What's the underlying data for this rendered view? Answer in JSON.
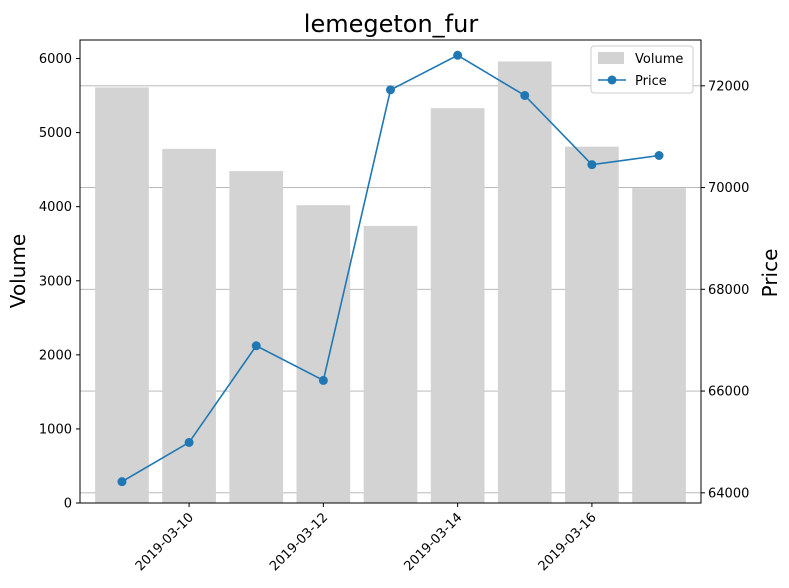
{
  "chart_data": {
    "type": "bar",
    "title": "lemegeton_fur",
    "xlabel": "",
    "ylabel": "Volume",
    "y2label": "Price",
    "categories": [
      "2019-03-09",
      "2019-03-10",
      "2019-03-11",
      "2019-03-12",
      "2019-03-13",
      "2019-03-14",
      "2019-03-15",
      "2019-03-16",
      "2019-03-17"
    ],
    "x_ticks": [
      "2019-03-10",
      "2019-03-12",
      "2019-03-14",
      "2019-03-16"
    ],
    "ylim": [
      0,
      6250
    ],
    "y_ticks": [
      0,
      1000,
      2000,
      3000,
      4000,
      5000,
      6000
    ],
    "y2lim": [
      63800,
      72900
    ],
    "y2_ticks": [
      64000,
      66000,
      68000,
      70000,
      72000
    ],
    "grid": "horizontal lines at right-axis ticks",
    "legend_position": "top-right",
    "series": [
      {
        "name": "Volume",
        "type": "bar",
        "axis": "left",
        "color": "#d3d3d3",
        "values": [
          5610,
          4780,
          4480,
          4020,
          3740,
          5330,
          5960,
          4810,
          4250
        ]
      },
      {
        "name": "Price",
        "type": "line",
        "axis": "right",
        "color": "#1f77b4",
        "marker": "circle",
        "values": [
          64220,
          64990,
          66890,
          66210,
          71920,
          72600,
          71810,
          70450,
          70630
        ]
      }
    ]
  }
}
